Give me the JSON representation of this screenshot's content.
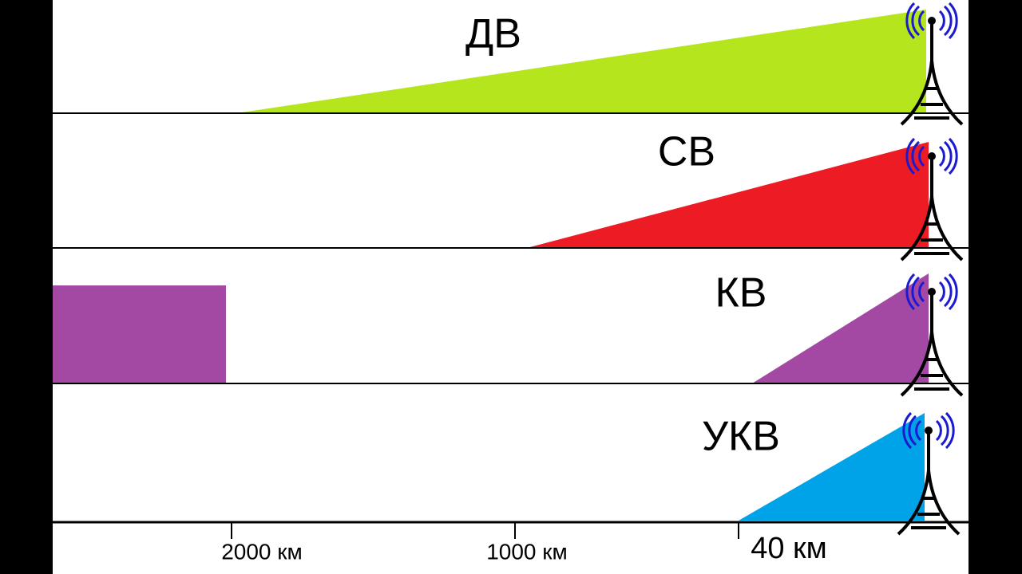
{
  "bands": [
    {
      "label": "ДВ"
    },
    {
      "label": "СВ"
    },
    {
      "label": "КВ"
    },
    {
      "label": "УКВ"
    }
  ],
  "scale": {
    "ticks": [
      {
        "label": "2000 км"
      },
      {
        "label": "1000 км"
      },
      {
        "label": "40 км"
      }
    ]
  }
}
